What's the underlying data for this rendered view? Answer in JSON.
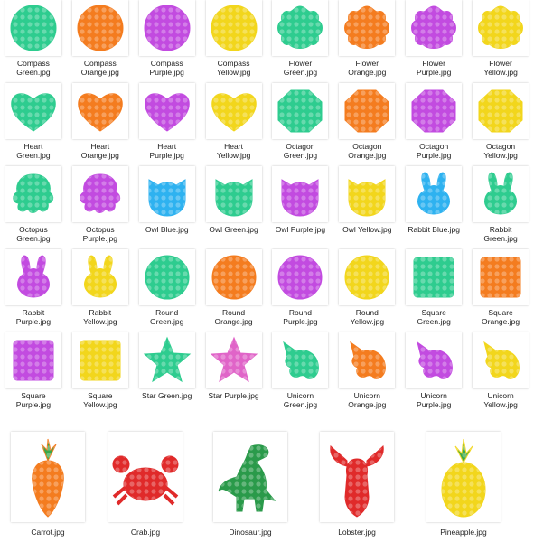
{
  "items": [
    {
      "label": "Compass\nGreen.jpg",
      "shape": "compass",
      "color": "#2ecc8f"
    },
    {
      "label": "Compass\nOrange.jpg",
      "shape": "compass",
      "color": "#f47c1f"
    },
    {
      "label": "Compass\nPurple.jpg",
      "shape": "compass",
      "color": "#c24be0"
    },
    {
      "label": "Compass\nYellow.jpg",
      "shape": "compass",
      "color": "#f2d61c"
    },
    {
      "label": "Flower\nGreen.jpg",
      "shape": "flower",
      "color": "#2ecc8f"
    },
    {
      "label": "Flower\nOrange.jpg",
      "shape": "flower",
      "color": "#f47c1f"
    },
    {
      "label": "Flower\nPurple.jpg",
      "shape": "flower",
      "color": "#c24be0"
    },
    {
      "label": "Flower\nYellow.jpg",
      "shape": "flower",
      "color": "#f2d61c"
    },
    {
      "label": "Heart\nGreen.jpg",
      "shape": "heart",
      "color": "#2ecc8f"
    },
    {
      "label": "Heart\nOrange.jpg",
      "shape": "heart",
      "color": "#f47c1f"
    },
    {
      "label": "Heart\nPurple.jpg",
      "shape": "heart",
      "color": "#c24be0"
    },
    {
      "label": "Heart\nYellow.jpg",
      "shape": "heart",
      "color": "#f2d61c"
    },
    {
      "label": "Octagon\nGreen.jpg",
      "shape": "octagon",
      "color": "#2ecc8f"
    },
    {
      "label": "Octagon\nOrange.jpg",
      "shape": "octagon",
      "color": "#f47c1f"
    },
    {
      "label": "Octagon\nPurple.jpg",
      "shape": "octagon",
      "color": "#c24be0"
    },
    {
      "label": "Octagon\nYellow.jpg",
      "shape": "octagon",
      "color": "#f2d61c"
    },
    {
      "label": "Octopus\nGreen.jpg",
      "shape": "octopus",
      "color": "#2ecc8f"
    },
    {
      "label": "Octopus\nPurple.jpg",
      "shape": "octopus",
      "color": "#c24be0"
    },
    {
      "label": "Owl Blue.jpg",
      "shape": "owl",
      "color": "#2eb2f0"
    },
    {
      "label": "Owl Green.jpg",
      "shape": "owl",
      "color": "#2ecc8f"
    },
    {
      "label": "Owl Purple.jpg",
      "shape": "owl",
      "color": "#c24be0"
    },
    {
      "label": "Owl Yellow.jpg",
      "shape": "owl",
      "color": "#f2d61c"
    },
    {
      "label": "Rabbit Blue.jpg",
      "shape": "rabbit",
      "color": "#2eb2f0"
    },
    {
      "label": "Rabbit\nGreen.jpg",
      "shape": "rabbit",
      "color": "#2ecc8f"
    },
    {
      "label": "Rabbit\nPurple.jpg",
      "shape": "rabbit",
      "color": "#c24be0"
    },
    {
      "label": "Rabbit\nYellow.jpg",
      "shape": "rabbit",
      "color": "#f2d61c"
    },
    {
      "label": "Round\nGreen.jpg",
      "shape": "round",
      "color": "#2ecc8f"
    },
    {
      "label": "Round\nOrange.jpg",
      "shape": "round",
      "color": "#f47c1f"
    },
    {
      "label": "Round\nPurple.jpg",
      "shape": "round",
      "color": "#c24be0"
    },
    {
      "label": "Round\nYellow.jpg",
      "shape": "round",
      "color": "#f2d61c"
    },
    {
      "label": "Square\nGreen.jpg",
      "shape": "square",
      "color": "#2ecc8f"
    },
    {
      "label": "Square\nOrange.jpg",
      "shape": "square",
      "color": "#f47c1f"
    },
    {
      "label": "Square\nPurple.jpg",
      "shape": "square",
      "color": "#c24be0"
    },
    {
      "label": "Square\nYellow.jpg",
      "shape": "square",
      "color": "#f2d61c"
    },
    {
      "label": "Star Green.jpg",
      "shape": "star",
      "color": "#2ecc8f"
    },
    {
      "label": "Star Purple.jpg",
      "shape": "star",
      "color": "#e064c8"
    },
    {
      "label": "Unicorn\nGreen.jpg",
      "shape": "unicorn",
      "color": "#2ecc8f"
    },
    {
      "label": "Unicorn\nOrange.jpg",
      "shape": "unicorn",
      "color": "#f47c1f"
    },
    {
      "label": "Unicorn\nPurple.jpg",
      "shape": "unicorn",
      "color": "#c24be0"
    },
    {
      "label": "Unicorn\nYellow.jpg",
      "shape": "unicorn",
      "color": "#f2d61c"
    }
  ],
  "large_items": [
    {
      "label": "Carrot.jpg",
      "shape": "carrot",
      "color": "#f47c1f"
    },
    {
      "label": "Crab.jpg",
      "shape": "crab",
      "color": "#e02a2a"
    },
    {
      "label": "Dinosaur.jpg",
      "shape": "dinosaur",
      "color": "#2a9a4a"
    },
    {
      "label": "Lobster.jpg",
      "shape": "lobster",
      "color": "#e02a2a"
    },
    {
      "label": "Pineapple.jpg",
      "shape": "pineapple",
      "color": "#f2d61c"
    }
  ]
}
